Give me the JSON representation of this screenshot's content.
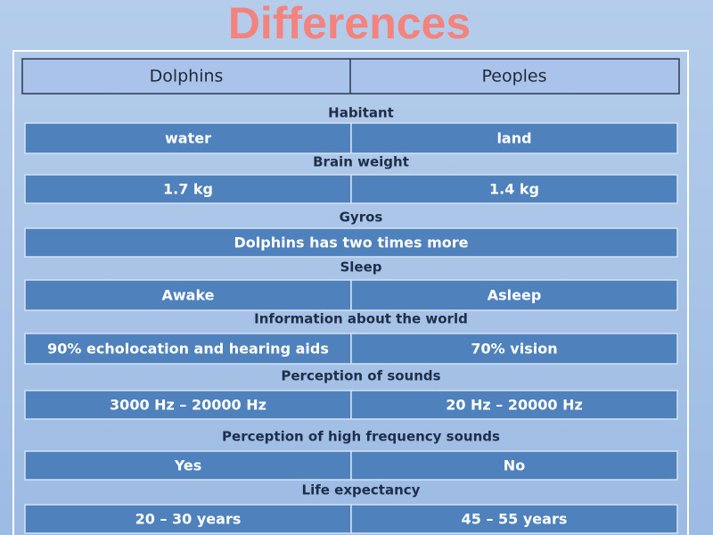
{
  "header": {
    "title": "Differences"
  },
  "table": {
    "columns": [
      "Dolphins",
      "Peoples"
    ],
    "sections": [
      {
        "heading": "Habitant",
        "cells": [
          "water",
          "land"
        ]
      },
      {
        "heading": "Brain weight",
        "cells": [
          "1.7 kg",
          "1.4 kg"
        ]
      },
      {
        "heading": "Gyros",
        "cells": [
          "Dolphins has two times more"
        ]
      },
      {
        "heading": "Sleep",
        "cells": [
          "Awake",
          "Asleep"
        ]
      },
      {
        "heading": "Information about the world",
        "cells": [
          "90% echolocation and hearing aids",
          "70% vision"
        ]
      },
      {
        "heading": "Perception of sounds",
        "cells": [
          "3000 Hz – 20000 Hz",
          "20 Hz – 20000 Hz"
        ]
      },
      {
        "heading": "Perception of high frequency sounds",
        "cells": [
          "Yes",
          "No"
        ]
      },
      {
        "heading": "Life expectancy",
        "cells": [
          "20 – 30 years",
          "45 – 55 years"
        ]
      }
    ]
  }
}
